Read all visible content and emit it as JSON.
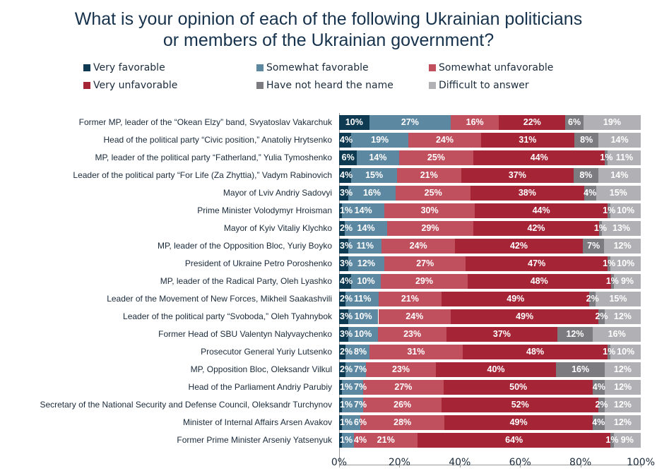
{
  "chart_data": {
    "type": "bar",
    "orientation": "horizontal",
    "stacked": true,
    "title": "What is your opinion of each of the following Ukrainian politicians or members of the Ukrainian government?",
    "title_lines": [
      "What is your opinion of each of the following Ukrainian politicians",
      "or members of the Ukrainian government?"
    ],
    "xlim": [
      0,
      100
    ],
    "x_ticks": [
      "0%",
      "20%",
      "40%",
      "60%",
      "80%",
      "100%"
    ],
    "legend_placement": "top",
    "grid": false,
    "categories": [
      "Former MP, leader of the “Okean Elzy” band, Svyatoslav Vakarchuk",
      "Head of the political party “Civic position,” Anatoliy Hrytsenko",
      "MP, leader of the political party “Fatherland,” Yulia Tymoshenko",
      "Leader of the political party “For Life (Za Zhyttia),” Vadym Rabinovich",
      "Mayor of Lviv Andriy Sadovyi",
      "Prime Minister Volodymyr Hroisman",
      "Mayor of Kyiv Vitaliy Klychko",
      "MP, leader of the Opposition Bloc, Yuriy Boyko",
      "President of Ukraine Petro Poroshenko",
      "MP, leader of the Radical Party, Oleh Lyashko",
      "Leader of the Movement of New Forces, Mikheil Saakashvili",
      "Leader of the political party “Svoboda,” Oleh Tyahnybok",
      "Former Head of SBU Valentyn Nalyvaychenko",
      "Prosecutor General Yuriy Lutsenko",
      "MP, Opposition Bloc, Oleksandr Vilkul",
      "Head of the Parliament Andriy Parubiy",
      "Secretary of the National Security and Defense Council, Oleksandr Turchynov",
      "Minister of Internal Affairs Arsen Avakov",
      "Former Prime Minister Arseniy Yatsenyuk"
    ],
    "series": [
      {
        "name": "Very favorable",
        "color": "#0e3a52",
        "values": [
          10,
          4,
          6,
          4,
          3,
          1,
          2,
          3,
          3,
          4,
          2,
          3,
          3,
          2,
          2,
          1,
          1,
          1,
          1
        ]
      },
      {
        "name": "Somewhat favorable",
        "color": "#5d88a2",
        "values": [
          27,
          19,
          14,
          15,
          16,
          14,
          14,
          11,
          12,
          10,
          11,
          10,
          10,
          8,
          7,
          7,
          7,
          6,
          4
        ]
      },
      {
        "name": "Somewhat unfavorable",
        "color": "#c1505f",
        "values": [
          16,
          24,
          25,
          21,
          25,
          30,
          29,
          24,
          27,
          29,
          21,
          24,
          23,
          31,
          23,
          27,
          26,
          28,
          21
        ]
      },
      {
        "name": "Very unfavorable",
        "color": "#a52537",
        "values": [
          22,
          31,
          44,
          37,
          38,
          44,
          42,
          42,
          47,
          48,
          49,
          49,
          37,
          48,
          40,
          50,
          52,
          49,
          64
        ]
      },
      {
        "name": "Have not heard the name",
        "color": "#7b7b80",
        "values": [
          6,
          8,
          1,
          8,
          4,
          1,
          1,
          7,
          1,
          1,
          2,
          2,
          12,
          1,
          16,
          4,
          2,
          4,
          1
        ]
      },
      {
        "name": "Difficult to answer",
        "color": "#b1b1b5",
        "values": [
          19,
          14,
          11,
          14,
          15,
          10,
          13,
          12,
          10,
          9,
          15,
          12,
          16,
          10,
          12,
          12,
          12,
          12,
          9
        ]
      }
    ]
  }
}
